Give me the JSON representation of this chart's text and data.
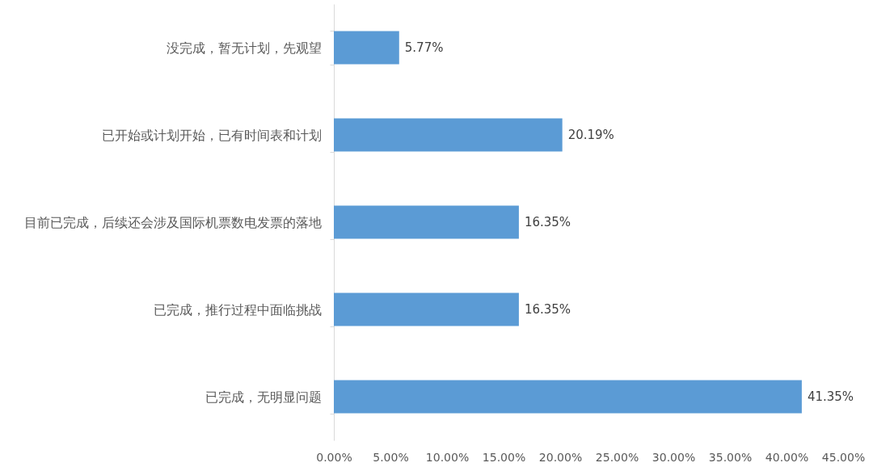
{
  "chart_data": {
    "type": "bar",
    "orientation": "horizontal",
    "categories": [
      "没完成，暂无计划，先观望",
      "已开始或计划开始，已有时间表和计划",
      "目前已完成，后续还会涉及国际机票数电发票的落地",
      "已完成，推行过程中面临挑战",
      "已完成，无明显问题"
    ],
    "values": [
      5.77,
      20.19,
      16.35,
      16.35,
      41.35
    ],
    "value_labels": [
      "5.77%",
      "20.19%",
      "16.35%",
      "16.35%",
      "41.35%"
    ],
    "color": "#5b9bd5",
    "xlim": [
      0,
      45
    ],
    "xticks": [
      {
        "value": 0,
        "label": "0.00%"
      },
      {
        "value": 5,
        "label": "5.00%"
      },
      {
        "value": 10,
        "label": "10.00%"
      },
      {
        "value": 15,
        "label": "15.00%"
      },
      {
        "value": 20,
        "label": "20.00%"
      },
      {
        "value": 25,
        "label": "25.00%"
      },
      {
        "value": 30,
        "label": "30.00%"
      },
      {
        "value": 35,
        "label": "35.00%"
      },
      {
        "value": 40,
        "label": "40.00%"
      },
      {
        "value": 45,
        "label": "45.00%"
      }
    ],
    "grid": false
  }
}
